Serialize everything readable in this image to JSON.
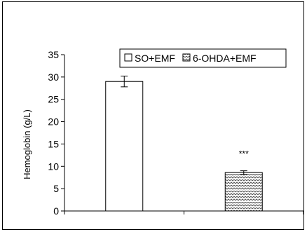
{
  "chart_data": {
    "type": "bar",
    "title": "",
    "xlabel": "",
    "ylabel": "Hemoglobin (g/L)",
    "ylim": [
      0,
      35
    ],
    "yticks": [
      0,
      5,
      10,
      15,
      20,
      25,
      30,
      35
    ],
    "grid": false,
    "legend_position": "top-right",
    "series": [
      {
        "name": "SO+EMF",
        "value": 29.0,
        "error": 1.2,
        "fill": "#ffffff",
        "pattern": "none"
      },
      {
        "name": "6-OHDA+EMF",
        "value": 8.6,
        "error": 0.4,
        "fill": "#ffffff",
        "pattern": "zigzag-hatch",
        "annotation": "***"
      }
    ],
    "colors": {
      "axis": "#000000",
      "bar_edge": "#000000",
      "hatch": "#555555"
    }
  }
}
